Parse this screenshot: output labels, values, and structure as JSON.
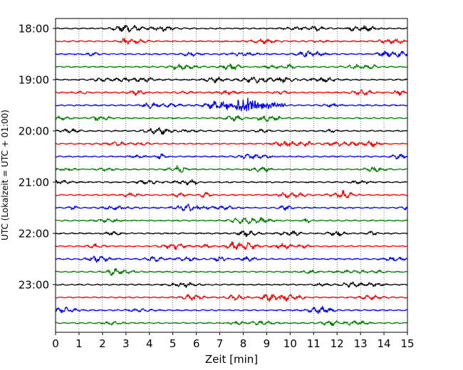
{
  "chart_data": {
    "type": "line",
    "subtype": "helicorder-seismogram",
    "title": "",
    "xlabel": "Zeit  [min]",
    "ylabel": "UTC (Lokalzeit = UTC + 01:00)",
    "xlim": [
      0,
      15
    ],
    "x_ticks": [
      0,
      1,
      2,
      3,
      4,
      5,
      6,
      7,
      8,
      9,
      10,
      11,
      12,
      13,
      14,
      15
    ],
    "y_tick_labels": [
      "18:00",
      "19:00",
      "20:00",
      "21:00",
      "22:00",
      "23:00"
    ],
    "grid": "vertical dotted lines at each minute",
    "trace_colors": [
      "#000000",
      "#ff0000",
      "#0000ff",
      "#008000"
    ],
    "trace_interval_min": 15,
    "traces": [
      {
        "start": "18:00"
      },
      {
        "start": "18:15"
      },
      {
        "start": "18:30"
      },
      {
        "start": "18:45"
      },
      {
        "start": "19:00"
      },
      {
        "start": "19:15"
      },
      {
        "start": "19:30"
      },
      {
        "start": "19:45"
      },
      {
        "start": "20:00"
      },
      {
        "start": "20:15"
      },
      {
        "start": "20:30"
      },
      {
        "start": "20:45"
      },
      {
        "start": "21:00"
      },
      {
        "start": "21:15"
      },
      {
        "start": "21:30"
      },
      {
        "start": "21:45"
      },
      {
        "start": "22:00"
      },
      {
        "start": "22:15"
      },
      {
        "start": "22:30"
      },
      {
        "start": "22:45"
      },
      {
        "start": "23:00"
      },
      {
        "start": "23:15"
      },
      {
        "start": "23:30"
      },
      {
        "start": "23:45"
      }
    ],
    "event": {
      "trace_start": "19:30",
      "x_start_min": 7.0,
      "x_peak_min": 8.1,
      "x_end_min": 9.8
    }
  }
}
